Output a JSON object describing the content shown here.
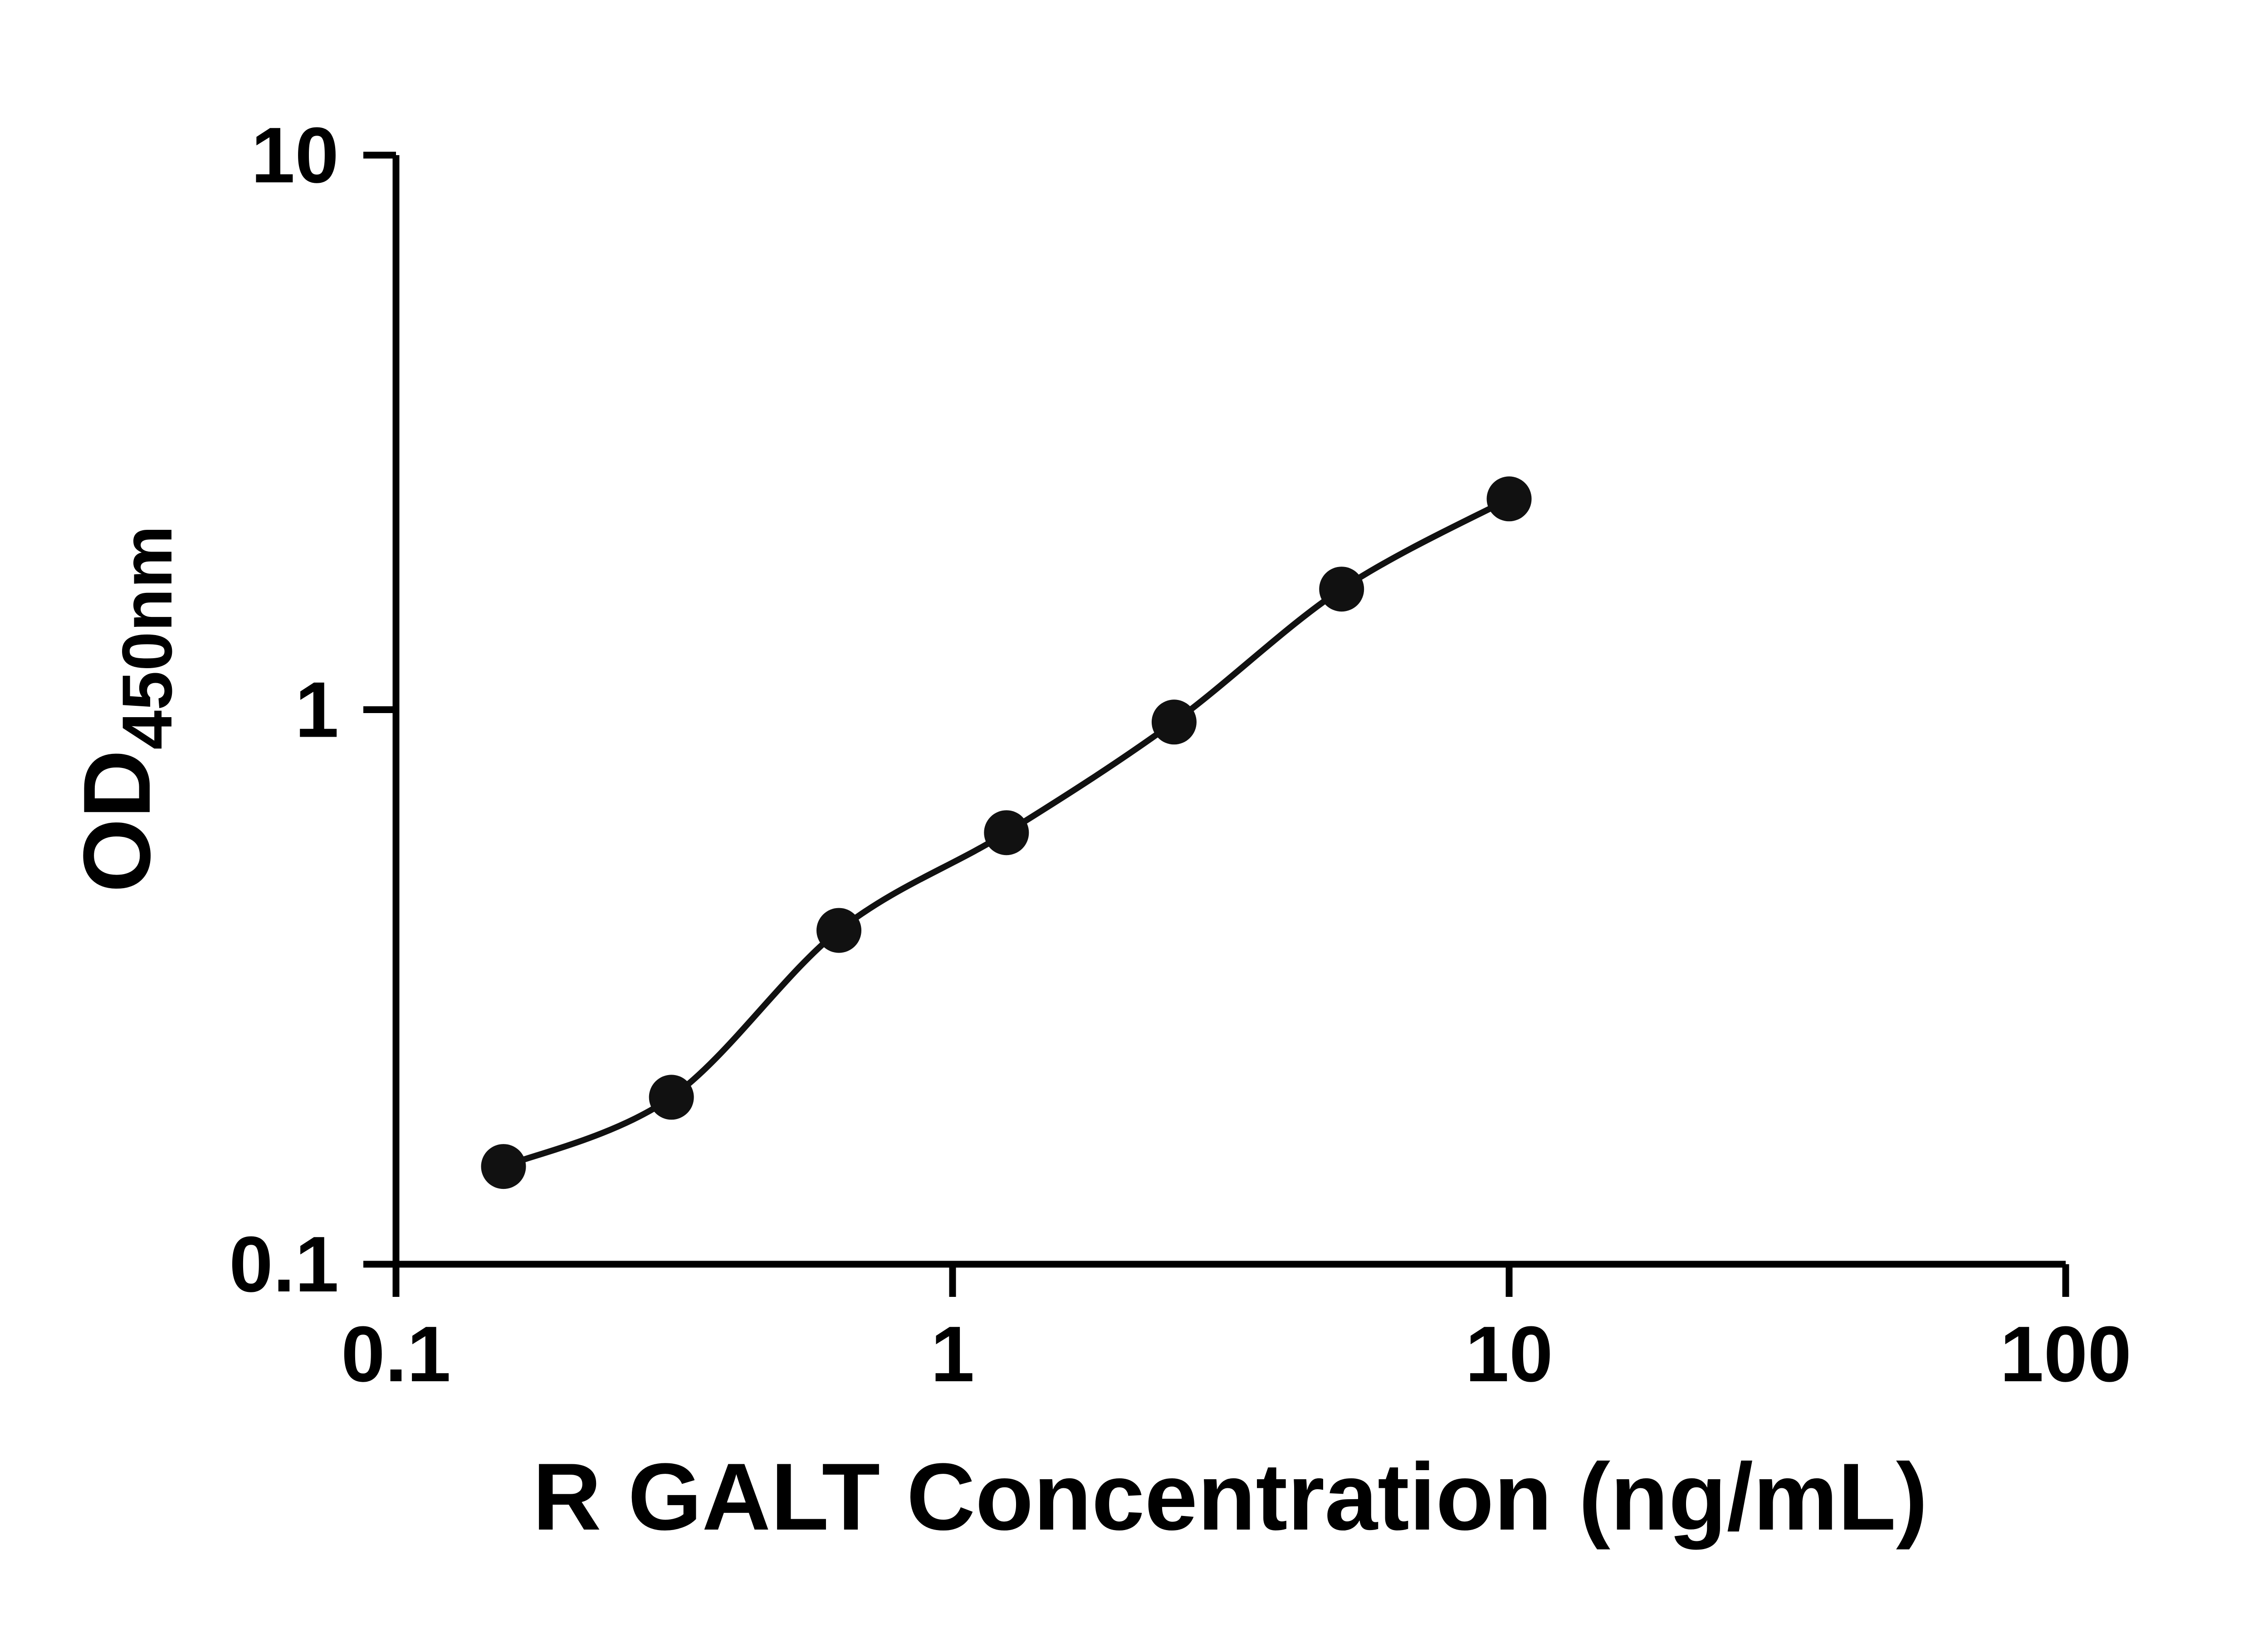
{
  "figure": {
    "background": "#ffffff"
  },
  "chart_data": {
    "type": "scatter",
    "title": "",
    "xlabel": "R GALT Concentration (ng/mL)",
    "ylabel": "OD450nm",
    "ylabel_main": "OD",
    "ylabel_sub": "450nm",
    "x_scale": "log",
    "y_scale": "log",
    "xlim": [
      0.1,
      100
    ],
    "ylim": [
      0.1,
      10
    ],
    "x_ticks": [
      0.1,
      1,
      10,
      100
    ],
    "x_tick_labels": [
      "0.1",
      "1",
      "10",
      "100"
    ],
    "y_ticks": [
      0.1,
      1,
      10
    ],
    "y_tick_labels": [
      "0.1",
      "1",
      "10"
    ],
    "grid": false,
    "legend": false,
    "axis_color": "#000000",
    "marker_color": "#111111",
    "line_color": "#111111",
    "series": [
      {
        "name": "R GALT standard curve",
        "marker": "circle",
        "curve": "smooth",
        "x": [
          0.156,
          0.3125,
          0.625,
          1.25,
          2.5,
          5,
          10
        ],
        "y": [
          0.15,
          0.2,
          0.4,
          0.6,
          0.95,
          1.65,
          2.4
        ]
      }
    ]
  }
}
